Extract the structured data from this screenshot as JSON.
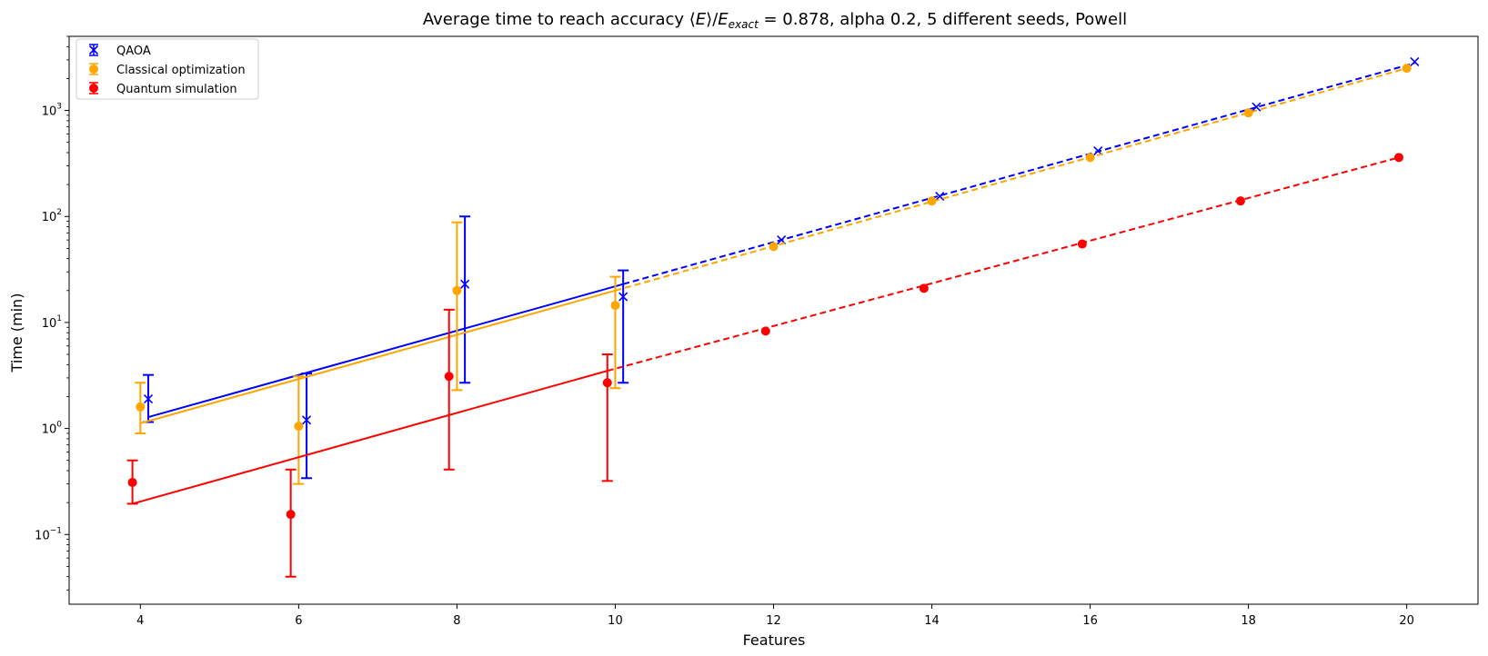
{
  "chart_data": {
    "type": "scatter",
    "title": "Average time to reach accuracy ⟨E⟩/E_exact = 0.878, alpha 0.2, 5 different seeds, Powell",
    "title_parts": {
      "prefix": "Average time to reach accuracy ",
      "suffix": " = 0.878, alpha 0.2, 5 different seeds, Powell",
      "math_langle": "⟨",
      "math_E": "E",
      "math_rangle": "⟩/",
      "math_E2": "E",
      "math_sub": "exact"
    },
    "xlabel": "Features",
    "ylabel": "Time (min)",
    "xlim": [
      3.1,
      20.9
    ],
    "ylim": [
      0.022,
      5000
    ],
    "yscale": "log",
    "grid": false,
    "legend_position": "top-left",
    "x_ticks": [
      4,
      6,
      8,
      10,
      12,
      14,
      16,
      18,
      20
    ],
    "x_tick_labels": [
      "4",
      "6",
      "8",
      "10",
      "12",
      "14",
      "16",
      "18",
      "20"
    ],
    "y_ticks": [
      0.1,
      1,
      10,
      100,
      1000
    ],
    "y_tick_labels": [
      {
        "base": "10",
        "exp": "−1"
      },
      {
        "base": "10",
        "exp": "0"
      },
      {
        "base": "10",
        "exp": "1"
      },
      {
        "base": "10",
        "exp": "2"
      },
      {
        "base": "10",
        "exp": "3"
      }
    ],
    "series": [
      {
        "name": "QAOA",
        "color": "#0000ff",
        "marker": "x",
        "x": [
          4.1,
          6.1,
          8.1,
          10.1
        ],
        "y": [
          1.9,
          1.2,
          23,
          17.5
        ],
        "yerr_low": [
          1.15,
          0.34,
          2.7,
          2.7
        ],
        "yerr_high": [
          3.2,
          3.3,
          100,
          31
        ],
        "fit_x": [
          4.1,
          10.1
        ],
        "fit_y": [
          1.28,
          23
        ],
        "extrap_x": [
          10.1,
          20.1
        ],
        "extrap_y": [
          23,
          2800
        ],
        "extrap_points_x": [
          12.1,
          14.1,
          16.1,
          18.1,
          20.1
        ],
        "extrap_points_y": [
          60,
          155,
          415,
          1080,
          2880
        ]
      },
      {
        "name": "Classical optimization",
        "color": "#ffa500",
        "marker": "o",
        "x": [
          4.0,
          6.0,
          8.0,
          10.0
        ],
        "y": [
          1.6,
          1.05,
          20,
          14.5
        ],
        "yerr_low": [
          0.9,
          0.3,
          2.3,
          2.4
        ],
        "yerr_high": [
          2.7,
          3.1,
          88,
          27
        ],
        "fit_x": [
          4.0,
          10.0
        ],
        "fit_y": [
          1.12,
          20
        ],
        "extrap_x": [
          10.0,
          20.0
        ],
        "extrap_y": [
          20,
          2500
        ],
        "extrap_points_x": [
          12.0,
          14.0,
          16.0,
          18.0,
          20.0
        ],
        "extrap_points_y": [
          52,
          140,
          360,
          950,
          2500
        ]
      },
      {
        "name": "Quantum simulation",
        "color": "#ff0000",
        "marker": "o",
        "x": [
          3.9,
          5.9,
          7.9,
          9.9
        ],
        "y": [
          0.31,
          0.155,
          3.1,
          2.7
        ],
        "yerr_low": [
          0.195,
          0.04,
          0.41,
          0.32
        ],
        "yerr_high": [
          0.5,
          0.41,
          13.2,
          5.0
        ],
        "fit_x": [
          3.9,
          9.9
        ],
        "fit_y": [
          0.195,
          3.5
        ],
        "extrap_x": [
          9.9,
          19.9
        ],
        "extrap_y": [
          3.5,
          360
        ],
        "extrap_points_x": [
          11.9,
          13.9,
          15.9,
          17.9,
          19.9
        ],
        "extrap_points_y": [
          8.3,
          21,
          55,
          140,
          360
        ]
      }
    ]
  }
}
